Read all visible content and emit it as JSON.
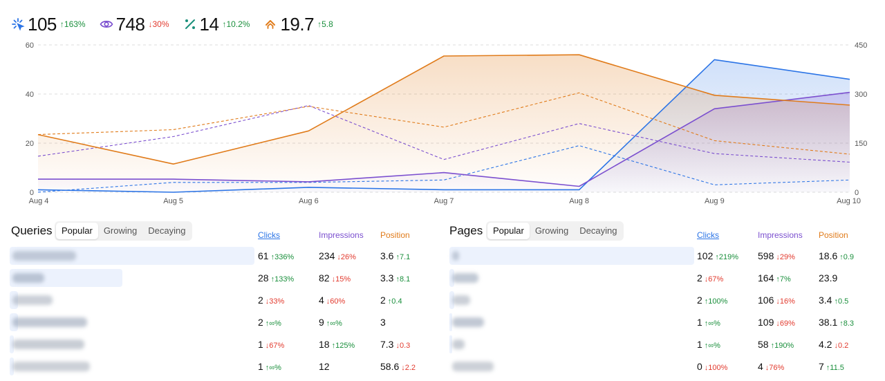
{
  "metrics": [
    {
      "icon": "cursor-click-icon",
      "value": "105",
      "change": "163%",
      "dir": "up",
      "color": "#2b74e6"
    },
    {
      "icon": "eye-icon",
      "value": "748",
      "change": "30%",
      "dir": "down",
      "color": "#7b4fcf"
    },
    {
      "icon": "percent-icon",
      "value": "14",
      "change": "10.2%",
      "dir": "up",
      "color": "#1a8f7a"
    },
    {
      "icon": "rank-chevron-icon",
      "value": "19.7",
      "change": "5.8",
      "dir": "up",
      "color": "#e07b1a"
    }
  ],
  "chart_data": {
    "type": "line",
    "categories": [
      "Aug 4",
      "Aug 5",
      "Aug 6",
      "Aug 7",
      "Aug 8",
      "Aug 9",
      "Aug 10"
    ],
    "y_left": {
      "ticks": [
        0,
        20,
        40,
        60
      ],
      "range": [
        0,
        60
      ]
    },
    "y_right": {
      "ticks": [
        0,
        150,
        300,
        450
      ],
      "range": [
        0,
        450
      ]
    },
    "grid": true,
    "series": [
      {
        "key": "clicks",
        "axis": "left",
        "style": "solid-area",
        "color": "#2b74e6",
        "values": [
          1,
          0,
          2,
          1,
          1,
          54,
          46
        ]
      },
      {
        "key": "clicks-previous",
        "axis": "left",
        "style": "dashed",
        "color": "#2b74e6",
        "values": [
          0,
          4,
          4,
          5,
          19,
          3,
          5
        ]
      },
      {
        "key": "impressions",
        "axis": "right",
        "style": "solid-area",
        "color": "#7b4fcf",
        "values": [
          40,
          40,
          32,
          60,
          18,
          255,
          305
        ]
      },
      {
        "key": "impressions-previous",
        "axis": "right",
        "style": "dashed",
        "color": "#7b4fcf",
        "values": [
          110,
          170,
          265,
          100,
          210,
          118,
          92
        ]
      },
      {
        "key": "position",
        "axis": "left",
        "style": "solid-area",
        "color": "#e07b1a",
        "values": [
          23.5,
          11.5,
          25,
          55.5,
          56,
          39.5,
          35.5
        ]
      },
      {
        "key": "position-previous",
        "axis": "left",
        "style": "dashed",
        "color": "#e07b1a",
        "values": [
          23.5,
          25.5,
          35,
          26.5,
          40.5,
          21,
          15.5
        ]
      }
    ]
  },
  "queries": {
    "title": "Queries",
    "tabs": [
      "Popular",
      "Growing",
      "Decaying"
    ],
    "active_tab": 0,
    "headers": {
      "clicks": "Clicks",
      "impressions": "Impressions",
      "position": "Position"
    },
    "rows": [
      {
        "share": 1.0,
        "clicks": "61",
        "clicks_c": "336%",
        "clicks_d": "up",
        "impr": "234",
        "impr_c": "26%",
        "impr_d": "down",
        "pos": "3.6",
        "pos_c": "7.1",
        "pos_d": "up"
      },
      {
        "share": 0.46,
        "clicks": "28",
        "clicks_c": "133%",
        "clicks_d": "up",
        "impr": "82",
        "impr_c": "15%",
        "impr_d": "down",
        "pos": "3.3",
        "pos_c": "8.1",
        "pos_d": "up"
      },
      {
        "share": 0.033,
        "clicks": "2",
        "clicks_c": "33%",
        "clicks_d": "down",
        "impr": "4",
        "impr_c": "60%",
        "impr_d": "down",
        "pos": "2",
        "pos_c": "0.4",
        "pos_d": "up"
      },
      {
        "share": 0.033,
        "clicks": "2",
        "clicks_c": "∞%",
        "clicks_d": "up",
        "impr": "9",
        "impr_c": "∞%",
        "impr_d": "up",
        "pos": "3",
        "pos_c": "",
        "pos_d": "none"
      },
      {
        "share": 0.016,
        "clicks": "1",
        "clicks_c": "67%",
        "clicks_d": "down",
        "impr": "18",
        "impr_c": "125%",
        "impr_d": "up",
        "pos": "7.3",
        "pos_c": "0.3",
        "pos_d": "down"
      },
      {
        "share": 0.016,
        "clicks": "1",
        "clicks_c": "∞%",
        "clicks_d": "up",
        "impr": "12",
        "impr_c": "",
        "impr_d": "none",
        "pos": "58.6",
        "pos_c": "2.2",
        "pos_d": "down"
      }
    ]
  },
  "pages": {
    "title": "Pages",
    "tabs": [
      "Popular",
      "Growing",
      "Decaying"
    ],
    "active_tab": 0,
    "headers": {
      "clicks": "Clicks",
      "impressions": "Impressions",
      "position": "Position"
    },
    "rows": [
      {
        "share": 1.0,
        "clicks": "102",
        "clicks_c": "219%",
        "clicks_d": "up",
        "impr": "598",
        "impr_c": "29%",
        "impr_d": "down",
        "pos": "18.6",
        "pos_c": "0.9",
        "pos_d": "up"
      },
      {
        "share": 0.02,
        "clicks": "2",
        "clicks_c": "67%",
        "clicks_d": "down",
        "impr": "164",
        "impr_c": "7%",
        "impr_d": "up",
        "pos": "23.9",
        "pos_c": "",
        "pos_d": "none"
      },
      {
        "share": 0.02,
        "clicks": "2",
        "clicks_c": "100%",
        "clicks_d": "up",
        "impr": "106",
        "impr_c": "16%",
        "impr_d": "down",
        "pos": "3.4",
        "pos_c": "0.5",
        "pos_d": "up"
      },
      {
        "share": 0.01,
        "clicks": "1",
        "clicks_c": "∞%",
        "clicks_d": "up",
        "impr": "109",
        "impr_c": "69%",
        "impr_d": "down",
        "pos": "38.1",
        "pos_c": "8.3",
        "pos_d": "up"
      },
      {
        "share": 0.01,
        "clicks": "1",
        "clicks_c": "∞%",
        "clicks_d": "up",
        "impr": "58",
        "impr_c": "190%",
        "impr_d": "up",
        "pos": "4.2",
        "pos_c": "0.2",
        "pos_d": "down"
      },
      {
        "share": 0.0,
        "clicks": "0",
        "clicks_c": "100%",
        "clicks_d": "down",
        "impr": "4",
        "impr_c": "76%",
        "impr_d": "down",
        "pos": "7",
        "pos_c": "11.5",
        "pos_d": "up"
      }
    ]
  }
}
